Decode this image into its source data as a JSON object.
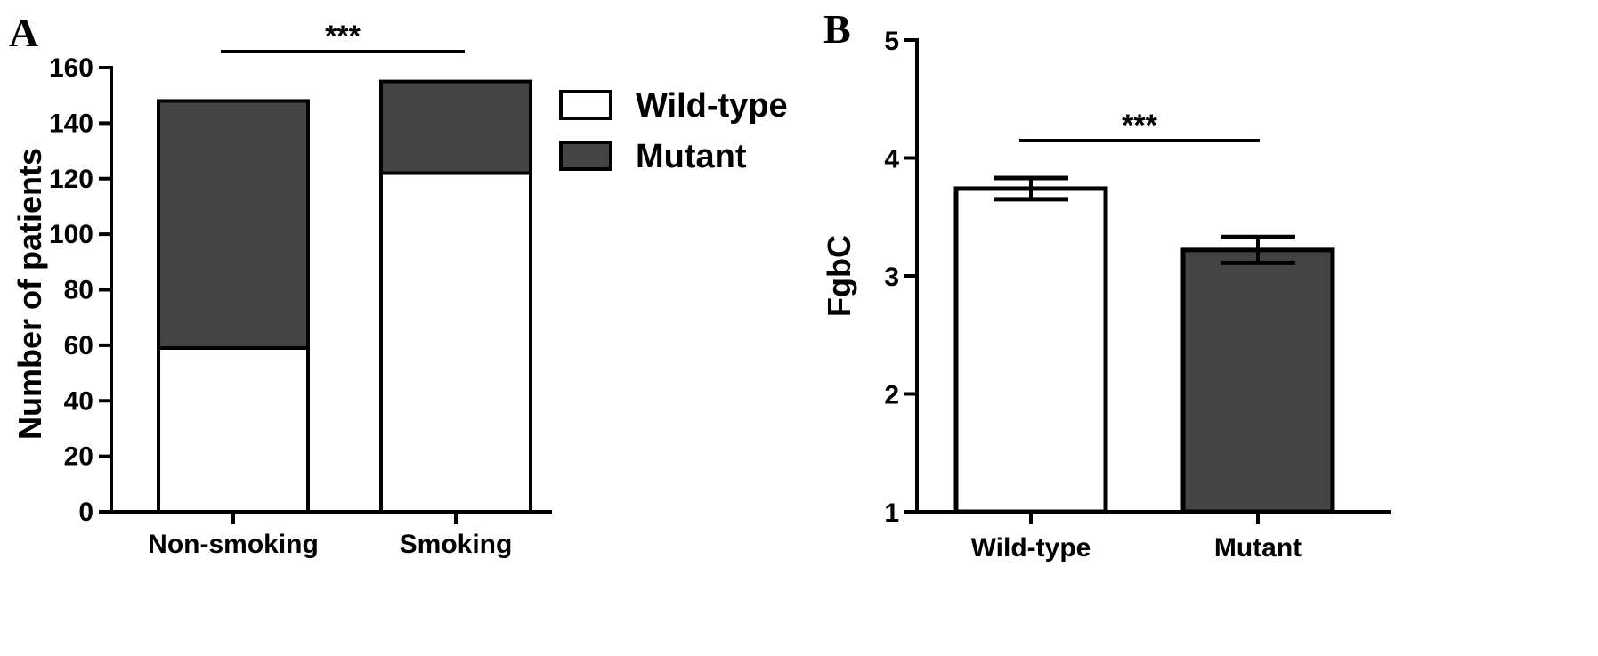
{
  "colors": {
    "wild_type": "#ffffff",
    "mutant": "#444444",
    "stroke": "#000000"
  },
  "chart_data": [
    {
      "panel": "A",
      "type": "bar",
      "stacked": true,
      "categories": [
        "Non-smoking",
        "Smoking"
      ],
      "series": [
        {
          "name": "Wild-type",
          "values": [
            59,
            122
          ],
          "color": "#ffffff"
        },
        {
          "name": "Mutant",
          "values": [
            89,
            33
          ],
          "color": "#444444"
        }
      ],
      "ylabel": "Number of patients",
      "xlabel": "",
      "ylim": [
        0,
        160
      ],
      "yticks": [
        0,
        20,
        40,
        60,
        80,
        100,
        120,
        140,
        160
      ],
      "legend": {
        "position": "right",
        "entries": [
          "Wild-type",
          "Mutant"
        ]
      },
      "significance": {
        "label": "***",
        "between": [
          "Non-smoking",
          "Smoking"
        ]
      },
      "grid": false
    },
    {
      "panel": "B",
      "type": "bar",
      "categories": [
        "Wild-type",
        "Mutant"
      ],
      "values": [
        3.74,
        3.22
      ],
      "errors": [
        0.09,
        0.11
      ],
      "colors": [
        "#ffffff",
        "#444444"
      ],
      "ylabel": "FgbC",
      "xlabel": "",
      "ylim": [
        1,
        5
      ],
      "yticks": [
        1,
        2,
        3,
        4,
        5
      ],
      "significance": {
        "label": "***",
        "between": [
          "Wild-type",
          "Mutant"
        ]
      },
      "grid": false
    }
  ]
}
